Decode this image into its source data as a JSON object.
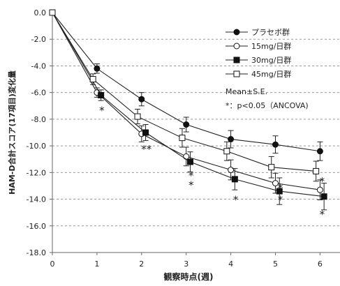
{
  "chart_data": {
    "type": "line",
    "xlabel": "観察時点(週)",
    "ylabel": "HAM-D合計スコア(17項目)変化量",
    "x": [
      0,
      1,
      2,
      3,
      4,
      5,
      6
    ],
    "xlim": [
      0,
      6.4
    ],
    "ylim": [
      -18,
      0
    ],
    "y_ticks": [
      "0.0",
      "-2.0",
      "-4.0",
      "-6.0",
      "-8.0",
      "-10.0",
      "-12.0",
      "-14.0",
      "-16.0",
      "-18.0"
    ],
    "x_ticks": [
      "0",
      "1",
      "2",
      "3",
      "4",
      "5",
      "6"
    ],
    "grid": "horizontal dashed",
    "legend_position": "top-right",
    "series": [
      {
        "name": "プラセボ群",
        "marker": "filled-circle",
        "offset": 0,
        "values": [
          0,
          -4.2,
          -6.5,
          -8.4,
          -9.5,
          -9.9,
          -10.4
        ],
        "err": [
          0,
          0.35,
          0.5,
          0.55,
          0.65,
          0.65,
          0.7
        ]
      },
      {
        "name": "15mg/日群",
        "marker": "open-circle",
        "offset": 0,
        "values": [
          0,
          -6.0,
          -9.1,
          -10.8,
          -11.8,
          -12.8,
          -13.3
        ],
        "err": [
          0,
          0.35,
          0.6,
          0.7,
          0.75,
          0.75,
          0.75
        ]
      },
      {
        "name": "30mg/日群",
        "marker": "filled-square",
        "offset": 0.09,
        "values": [
          0,
          -6.2,
          -9.0,
          -11.2,
          -12.5,
          -13.4,
          -13.8
        ],
        "err": [
          0,
          0.4,
          0.6,
          0.75,
          0.8,
          1.0,
          1.0
        ]
      },
      {
        "name": "45mg/日群",
        "marker": "open-square",
        "offset": -0.09,
        "values": [
          0,
          -5.0,
          -7.8,
          -9.4,
          -10.4,
          -11.6,
          -11.9
        ],
        "err": [
          0,
          0.4,
          0.55,
          0.7,
          0.7,
          0.8,
          0.75
        ]
      }
    ],
    "legend_note": "Mean±S.E.",
    "significance_note": "*：p<0.05（ANCOVA)",
    "significance_marks": [
      {
        "x": 1,
        "y": -7.3,
        "text": "*"
      },
      {
        "x": 2,
        "y": -10.2,
        "text": "**"
      },
      {
        "x": 3,
        "y": -12.2,
        "text": "*"
      },
      {
        "x": 3,
        "y": -12.9,
        "text": "*"
      },
      {
        "x": 4,
        "y": -14.0,
        "text": "*"
      },
      {
        "x": 5,
        "y": -13.1,
        "text": "*"
      },
      {
        "x": 5,
        "y": -14.0,
        "text": "*"
      },
      {
        "x": 6,
        "y": -12.6,
        "text": "*"
      },
      {
        "x": 6,
        "y": -15.1,
        "text": "*"
      }
    ]
  }
}
